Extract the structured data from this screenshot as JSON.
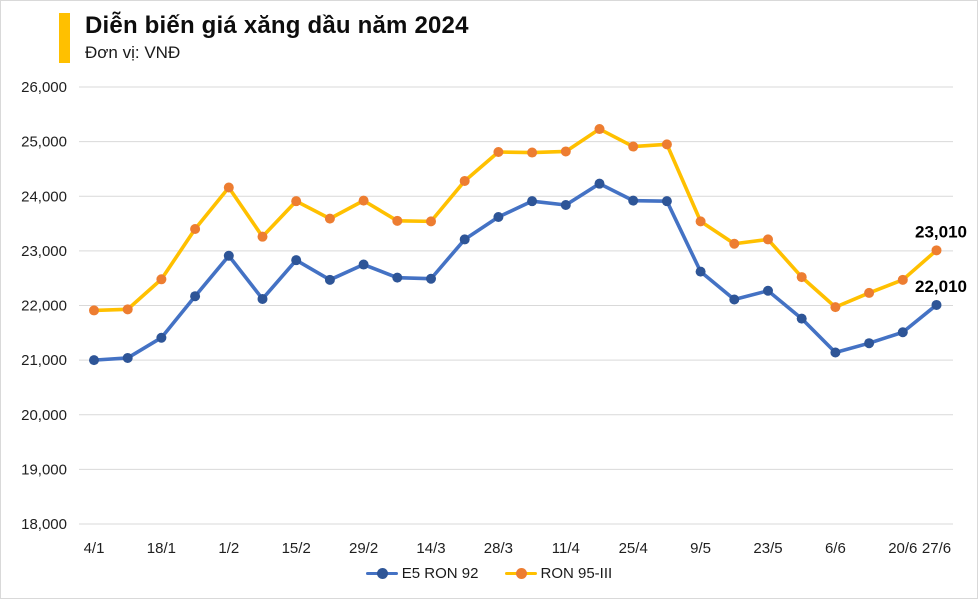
{
  "page": {
    "title": "Diễn biến giá xăng dầu năm 2024",
    "unit_label": "Đơn vị: VNĐ"
  },
  "colors": {
    "accent_bar": "#FFC000",
    "gridline": "#D9D9D9",
    "axis_text": "#1f1f1f",
    "end_label_text": "#000000"
  },
  "legend": {
    "items": [
      {
        "label": "E5 RON 92"
      },
      {
        "label": "RON 95-III"
      }
    ]
  },
  "chart_data": {
    "type": "line",
    "title": "Diễn biến giá xăng dầu năm 2024",
    "unit_label": "Đơn vị: VNĐ",
    "categories": [
      "4/1",
      "11/1",
      "18/1",
      "25/1",
      "1/2",
      "8/2",
      "15/2",
      "22/2",
      "29/2",
      "7/3",
      "14/3",
      "21/3",
      "28/3",
      "4/4",
      "11/4",
      "17/4",
      "25/4",
      "2/5",
      "9/5",
      "16/5",
      "23/5",
      "30/5",
      "6/6",
      "13/6",
      "20/6",
      "27/6"
    ],
    "series": [
      {
        "name": "E5 RON 92",
        "color": "#4472C4",
        "marker_color": "#2E5597",
        "values": [
          21000,
          21040,
          21410,
          22170,
          22910,
          22120,
          22830,
          22470,
          22750,
          22510,
          22490,
          23210,
          23620,
          23910,
          23840,
          24230,
          23920,
          23910,
          22620,
          22110,
          22270,
          21760,
          21140,
          21310,
          21510,
          22010
        ]
      },
      {
        "name": "RON 95-III",
        "color": "#FFC000",
        "marker_color": "#ED7D31",
        "values": [
          21910,
          21930,
          22480,
          23400,
          24160,
          23260,
          23910,
          23590,
          23920,
          23550,
          23540,
          24280,
          24810,
          24800,
          24820,
          25230,
          24910,
          24950,
          23540,
          23130,
          23210,
          22520,
          21970,
          22230,
          22470,
          23010
        ]
      }
    ],
    "ylim": [
      18000,
      26000
    ],
    "ytick_step": 1000,
    "ytick_labels": [
      "18,000",
      "19,000",
      "20,000",
      "21,000",
      "22,000",
      "23,000",
      "24,000",
      "25,000",
      "26,000"
    ],
    "x_tick_indices": [
      0,
      2,
      4,
      6,
      8,
      10,
      12,
      14,
      16,
      18,
      20,
      22,
      24,
      25
    ],
    "x_tick_labels": [
      "4/1",
      "18/1",
      "1/2",
      "15/2",
      "29/2",
      "14/3",
      "28/3",
      "11/4",
      "25/4",
      "9/5",
      "23/5",
      "6/6",
      "20/6",
      "27/6"
    ],
    "grid": "horizontal",
    "legend_position": "bottom",
    "end_labels": [
      {
        "series_index": 1,
        "text": "23,010"
      },
      {
        "series_index": 0,
        "text": "22,010"
      }
    ]
  }
}
